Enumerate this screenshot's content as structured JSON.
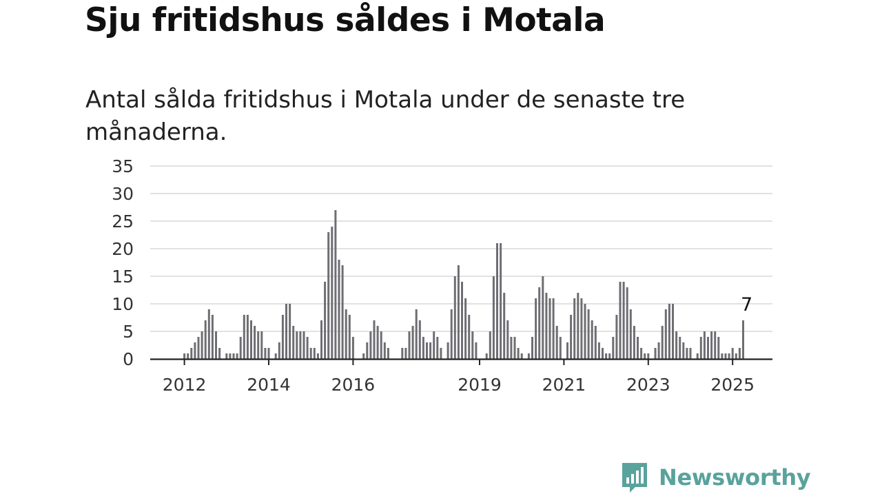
{
  "title": "Sju fritidshus såldes i Motala",
  "subtitle": "Antal sålda fritidshus i Motala under de senaste tre månaderna.",
  "colors": {
    "bar": "#6e6d72",
    "highlight": "#1ea39a",
    "grid": "#d9d9d9",
    "axis": "#222222",
    "brand": "#5aa29c"
  },
  "brand": {
    "name": "Newsworthy",
    "icon": "bar-chart-speech-bubble-icon"
  },
  "chart_data": {
    "type": "bar",
    "grid": true,
    "ylim": [
      0,
      35
    ],
    "yticks": [
      0,
      5,
      10,
      15,
      20,
      25,
      30,
      35
    ],
    "x_tick_labels": [
      "2012",
      "2014",
      "2016",
      "2019",
      "2021",
      "2023",
      "2025"
    ],
    "x_ticks": [
      {
        "label": "2012",
        "index": 1
      },
      {
        "label": "2014",
        "index": 25
      },
      {
        "label": "2016",
        "index": 49
      },
      {
        "label": "2019",
        "index": 85
      },
      {
        "label": "2021",
        "index": 109
      },
      {
        "label": "2023",
        "index": 133
      },
      {
        "label": "2025",
        "index": 157
      }
    ],
    "values": [
      0,
      1,
      1,
      2,
      3,
      4,
      5,
      7,
      9,
      8,
      5,
      2,
      0,
      1,
      1,
      1,
      1,
      4,
      8,
      8,
      7,
      6,
      5,
      5,
      2,
      2,
      0,
      1,
      3,
      8,
      10,
      10,
      6,
      5,
      5,
      5,
      4,
      2,
      2,
      1,
      7,
      14,
      23,
      24,
      27,
      18,
      17,
      9,
      8,
      4,
      0,
      0,
      1,
      3,
      5,
      7,
      6,
      5,
      3,
      2,
      0,
      0,
      0,
      2,
      2,
      5,
      6,
      9,
      7,
      4,
      3,
      3,
      5,
      4,
      2,
      0,
      3,
      9,
      15,
      17,
      14,
      11,
      8,
      5,
      3,
      0,
      0,
      1,
      5,
      15,
      21,
      21,
      12,
      7,
      4,
      4,
      2,
      1,
      0,
      1,
      4,
      11,
      13,
      15,
      12,
      11,
      11,
      6,
      4,
      0,
      3,
      8,
      11,
      12,
      11,
      10,
      9,
      7,
      6,
      3,
      2,
      1,
      1,
      4,
      8,
      14,
      14,
      13,
      9,
      6,
      4,
      2,
      1,
      1,
      0,
      2,
      3,
      6,
      9,
      10,
      10,
      5,
      4,
      3,
      2,
      2,
      0,
      1,
      4,
      5,
      4,
      5,
      5,
      4,
      1,
      1,
      1,
      2,
      1,
      2,
      7
    ],
    "highlight": {
      "index": 161,
      "value": 7,
      "label": "7"
    }
  }
}
